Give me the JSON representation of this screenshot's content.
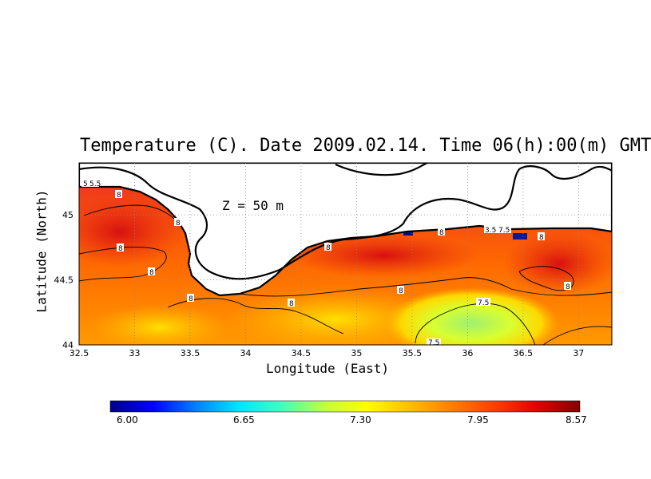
{
  "title": "Temperature (C). Date 2009.02.14. Time 06(h):00(m) GMT",
  "depth_label": "Z = 50 m",
  "xlabel": "Longitude (East)",
  "ylabel": "Latitude (North)",
  "x_ticks": [
    "32.5",
    "33",
    "33.5",
    "34",
    "34.5",
    "35",
    "35.5",
    "36",
    "36.5",
    "37"
  ],
  "y_ticks": [
    "45",
    "44.5",
    "44"
  ],
  "colorbar": {
    "ticks": [
      "6.00",
      "6.65",
      "7.30",
      "7.95",
      "8.57"
    ],
    "colors": [
      "#00008b",
      "#0000ff",
      "#007fff",
      "#00e5ff",
      "#40ffbf",
      "#bfff40",
      "#ffff00",
      "#ffbf00",
      "#ff7f00",
      "#ff3f00",
      "#e00000",
      "#800000"
    ]
  },
  "contour_labels": [
    "5",
    "5.5",
    "8",
    "8",
    "8",
    "8",
    "8",
    "8",
    "8",
    "8",
    "8",
    "8",
    "8",
    "3.5",
    "7.5",
    "7.5",
    "7.5"
  ],
  "chart_data": {
    "type": "heatmap",
    "variable": "Temperature (C)",
    "xlim": [
      32.5,
      37.3
    ],
    "ylim": [
      44.0,
      45.4
    ],
    "zlim": [
      6.0,
      8.57
    ],
    "contour_levels": [
      7.5,
      8.0
    ],
    "grid": true,
    "legend_placement": "bottom"
  }
}
